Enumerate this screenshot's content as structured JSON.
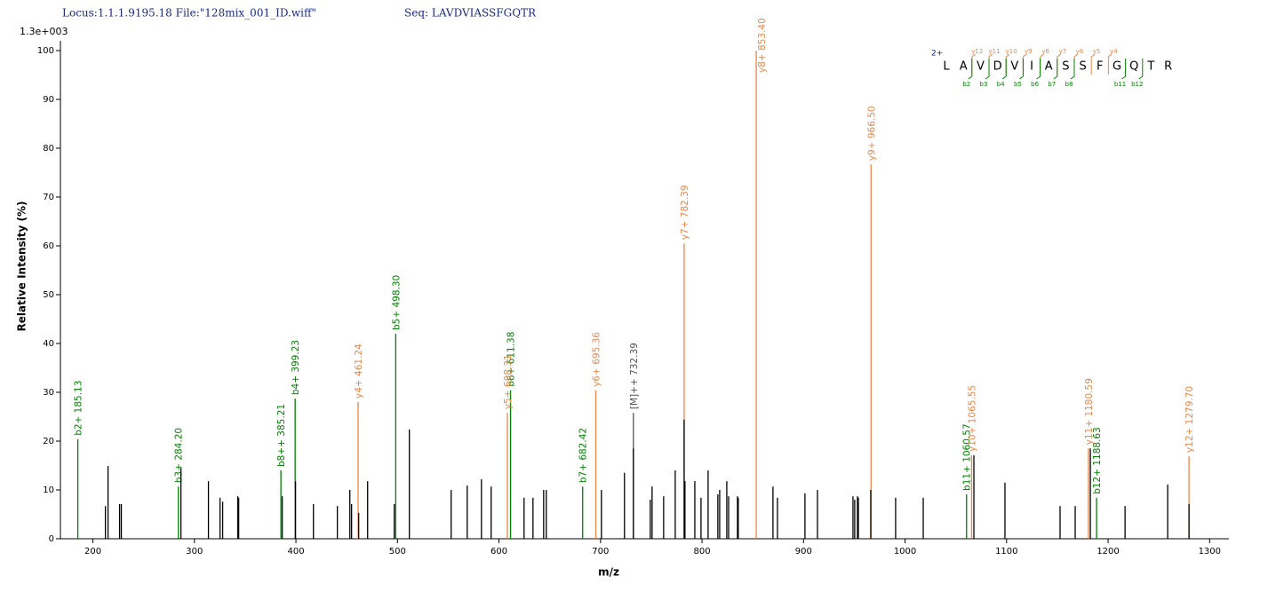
{
  "header": {
    "locus": "Locus:1.1.1.9195.18 File:\"128mix_001_ID.wiff\"",
    "sequence": "Seq: LAVDVIASSFGQTR"
  },
  "chart_data": {
    "type": "spectrum",
    "scale_label": "1.3e+003",
    "x_label": "m/z",
    "y_label": "Relative Intensity (%)",
    "xlim": [
      168,
      1319
    ],
    "ylim": [
      0,
      102
    ],
    "xticks": [
      200,
      300,
      400,
      500,
      600,
      700,
      800,
      900,
      1000,
      1100,
      1200,
      1300
    ],
    "yticks": [
      0,
      10,
      20,
      30,
      40,
      50,
      60,
      70,
      80,
      90,
      100
    ],
    "series": [
      {
        "color": "#008000",
        "x": [
          185.13,
          284.2,
          385.21,
          399.23,
          498.3,
          611.38,
          682.42,
          1060.57,
          1188.63
        ],
        "values": [
          20.4,
          10.7,
          14,
          28.7,
          42,
          30.4,
          10.7,
          9.1,
          8.4
        ],
        "labels": [
          "b2+ 185.13",
          "b3+ 284.20",
          "b8++ 385.21",
          "b4+ 399.23",
          "b5+ 498.30",
          "b6+ 611.38",
          "b7+ 682.42",
          "b11+ 1060.57",
          "b12+ 1188.63"
        ]
      },
      {
        "color": "#e8874a",
        "x": [
          461.24,
          608.31,
          695.36,
          782.39,
          853.4,
          966.5,
          1065.55,
          1180.59,
          1279.7
        ],
        "values": [
          28,
          25.8,
          30.4,
          60.5,
          100,
          76.7,
          17.1,
          18.5,
          16.9
        ],
        "labels": [
          "y4+ 461.24",
          "y5+ 608.31",
          "y6+ 695.36",
          "y7+ 782.39",
          "y8+ 853.40",
          "y9+ 966.50",
          "y10+ 1065.55",
          "y11+ 1180.59",
          "y12+ 1279.70"
        ]
      },
      {
        "color": "#555555",
        "x": [
          732.39
        ],
        "values": [
          25.8
        ],
        "labels": [
          "[M]++ 732.39"
        ]
      },
      {
        "color": "#000000",
        "x": [
          212.3,
          214.9,
          226.3,
          228.0,
          286.7,
          313.8,
          325.2,
          327.8,
          342.7,
          343.6,
          386.5,
          399.6,
          417.2,
          440.8,
          453.1,
          454.8,
          461.8,
          470.6,
          496.8,
          511.7,
          552.9,
          568.7,
          582.7,
          592.3,
          624.7,
          633.5,
          644.0,
          646.6,
          700.9,
          723.6,
          732.4,
          749.0,
          750.8,
          762.2,
          773.6,
          782.4,
          783.2,
          792.9,
          799.0,
          806.0,
          815.6,
          817.4,
          824.4,
          826.2,
          834.9,
          835.7,
          869.9,
          874.3,
          901.4,
          913.7,
          948.7,
          950.4,
          953.1,
          954.0,
          966.2,
          990.7,
          1017.9,
          1067.8,
          1098.4,
          1152.7,
          1167.6,
          1182.5,
          1216.7,
          1258.7,
          1279.7
        ],
        "values": [
          6.7,
          14.9,
          7.1,
          7.1,
          14.5,
          11.8,
          8.4,
          7.6,
          8.7,
          8.4,
          8.7,
          11.8,
          7.1,
          6.7,
          10,
          7.1,
          5.3,
          11.8,
          7.1,
          22.4,
          10,
          10.9,
          12.2,
          10.7,
          8.4,
          8.4,
          10,
          10,
          10,
          13.5,
          18.5,
          8,
          10.7,
          8.7,
          14,
          24.4,
          11.8,
          11.8,
          8.4,
          14,
          9.1,
          10,
          11.8,
          8.7,
          8.7,
          8.4,
          10.7,
          8.4,
          9.3,
          10,
          8.7,
          8,
          8.7,
          8.4,
          10,
          8.4,
          8.4,
          17.1,
          11.5,
          6.7,
          6.7,
          18.5,
          6.7,
          11.1,
          7.1
        ]
      }
    ]
  },
  "fragment_map": {
    "charge": "2+",
    "residues": [
      "L",
      "A",
      "V",
      "D",
      "V",
      "I",
      "A",
      "S",
      "S",
      "F",
      "G",
      "Q",
      "T",
      "R"
    ],
    "y_ions": [
      "y12",
      "y11",
      "y10",
      "y9",
      "y8",
      "y7",
      "y6",
      "y5",
      "y4"
    ],
    "b_ions": [
      "b2",
      "b3",
      "b4",
      "b5",
      "b6",
      "b7",
      "b8",
      "b11",
      "b12"
    ]
  }
}
